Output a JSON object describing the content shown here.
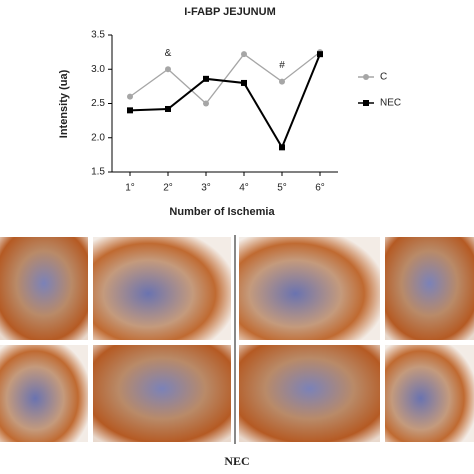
{
  "chart_data": {
    "type": "line",
    "title": "I-FABP JEJUNUM",
    "x_label": "Number of Ischemia",
    "y_label": "Intensity (ua)",
    "categories": [
      "1°",
      "2°",
      "3°",
      "4°",
      "5°",
      "6°"
    ],
    "series": [
      {
        "name": "C",
        "color": "#a6a6a6",
        "marker": "circle",
        "values": [
          2.6,
          3.0,
          2.5,
          3.22,
          2.82,
          3.25
        ]
      },
      {
        "name": "NEC",
        "color": "#000000",
        "marker": "square",
        "values": [
          2.4,
          2.42,
          2.86,
          2.8,
          1.86,
          3.22
        ]
      }
    ],
    "ylim": [
      1.5,
      3.5
    ],
    "yticks": [
      1.5,
      {
        "value": 2,
        "label": "2.0"
      },
      2.5,
      {
        "value": 3,
        "label": "3.0"
      },
      3.5
    ],
    "annotations": [
      "&",
      "#"
    ],
    "legend": "right",
    "grid": false
  },
  "figure_caption": "NEC"
}
